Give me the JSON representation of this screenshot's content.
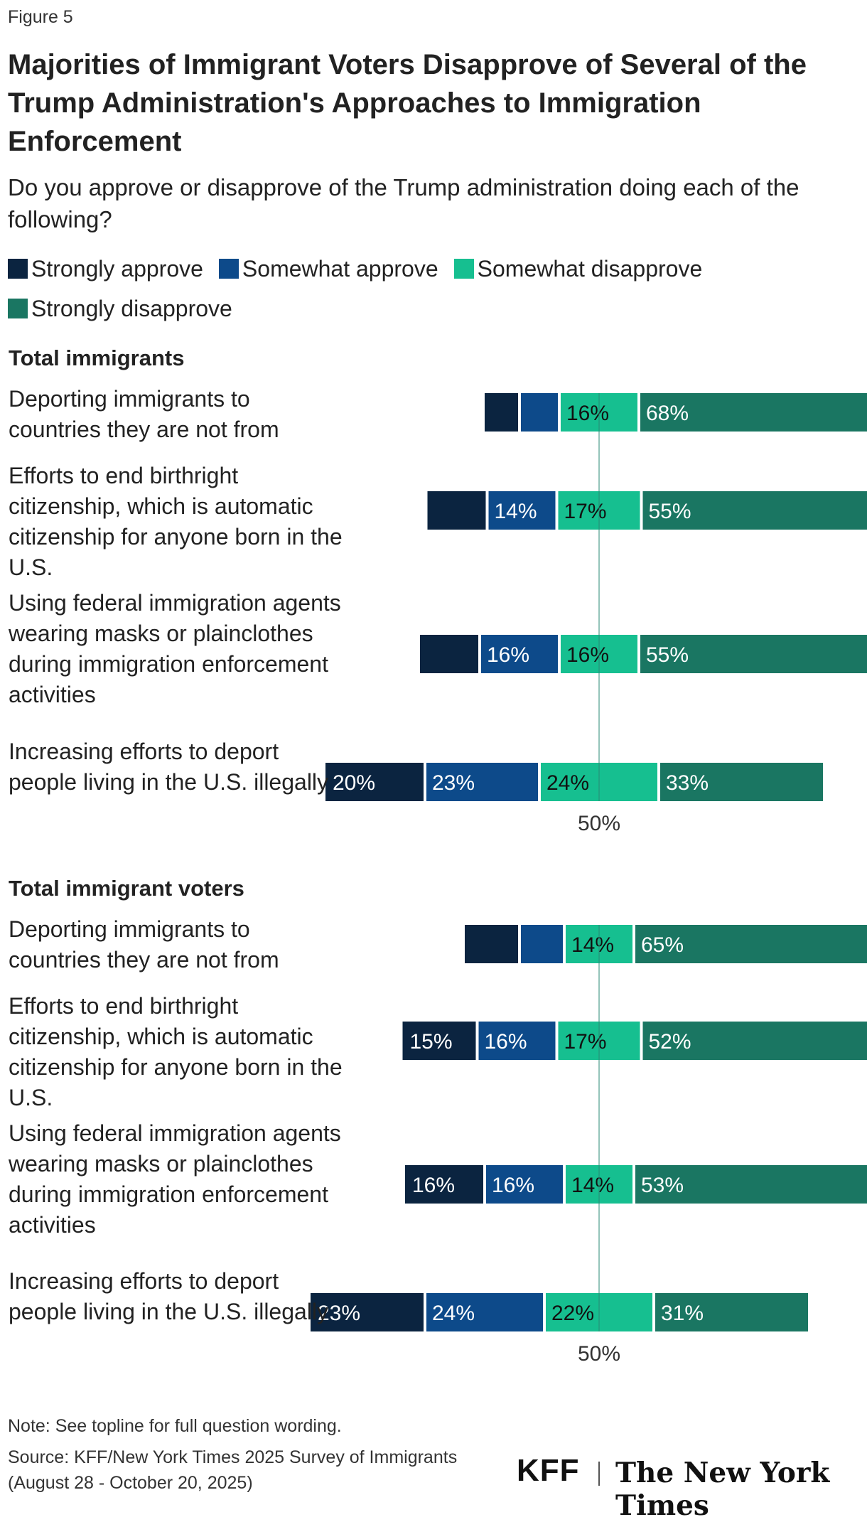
{
  "figure_label": "Figure 5",
  "title": "Majorities of Immigrant Voters Disapprove of Several of the Trump Administration's Approaches to Immigration Enforcement",
  "subtitle": "Do you approve or disapprove of the Trump administration doing each of the following?",
  "note": "Note: See topline for full question wording.",
  "source_line1": "Source: KFF/New York Times 2025 Survey of Immigrants",
  "source_line2": "(August 28 - October 20, 2025)",
  "logos": {
    "kff": "KFF",
    "nyt": "The New York Times"
  },
  "colors": {
    "strongly_approve": "#0b2440",
    "somewhat_approve": "#0d4a8a",
    "somewhat_disapprove": "#16bf90",
    "strongly_disapprove": "#1a7662",
    "center_line": "#2a8a74"
  },
  "chart_data": {
    "type": "bar",
    "orientation": "horizontal-stacked-diverging",
    "legend": [
      "Strongly approve",
      "Somewhat approve",
      "Somewhat disapprove",
      "Strongly disapprove"
    ],
    "center_label": "50%",
    "panels": [
      {
        "title": "Total immigrants",
        "rows": [
          {
            "label": "Deporting immigrants to countries they are not from",
            "values": [
              7,
              8,
              16,
              68
            ],
            "labels": [
              "",
              "",
              "16%",
              "68%"
            ]
          },
          {
            "label": "Efforts to end birthright citizenship, which is automatic citizenship for anyone born in the U.S.",
            "values": [
              12,
              14,
              17,
              55
            ],
            "labels": [
              "",
              "14%",
              "17%",
              "55%"
            ]
          },
          {
            "label": "Using federal immigration agents wearing masks or plainclothes during immigration enforcement activities",
            "values": [
              12,
              16,
              16,
              55
            ],
            "labels": [
              "",
              "16%",
              "16%",
              "55%"
            ]
          },
          {
            "label": "Increasing efforts to deport people living in the U.S. illegally",
            "values": [
              20,
              23,
              24,
              33
            ],
            "labels": [
              "20%",
              "23%",
              "24%",
              "33%"
            ]
          }
        ]
      },
      {
        "title": "Total immigrant voters",
        "rows": [
          {
            "label": "Deporting immigrants to countries they are not from",
            "values": [
              11,
              9,
              14,
              65
            ],
            "labels": [
              "",
              "",
              "14%",
              "65%"
            ]
          },
          {
            "label": "Efforts to end birthright citizenship, which is automatic citizenship for anyone born in the U.S.",
            "values": [
              15,
              16,
              17,
              52
            ],
            "labels": [
              "15%",
              "16%",
              "17%",
              "52%"
            ]
          },
          {
            "label": "Using federal immigration agents wearing masks or plainclothes during immigration enforcement activities",
            "values": [
              16,
              16,
              14,
              53
            ],
            "labels": [
              "16%",
              "16%",
              "14%",
              "53%"
            ]
          },
          {
            "label": "Increasing efforts to deport people living in the U.S. illegally",
            "values": [
              23,
              24,
              22,
              31
            ],
            "labels": [
              "23%",
              "24%",
              "22%",
              "31%"
            ]
          }
        ]
      }
    ]
  }
}
